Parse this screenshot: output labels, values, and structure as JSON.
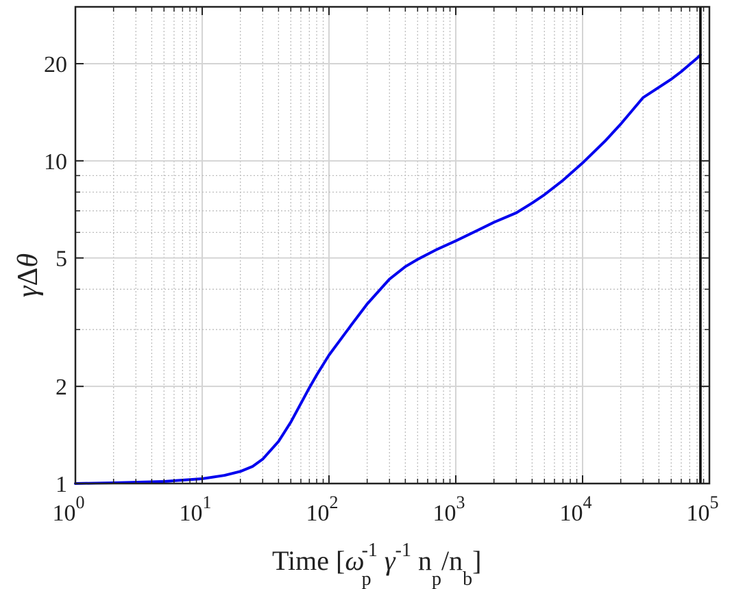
{
  "chart_data": {
    "type": "line",
    "xscale": "log",
    "yscale": "log",
    "xlim": [
      1,
      100000
    ],
    "ylim": [
      1,
      30
    ],
    "grid": true,
    "minor_grid": true,
    "xlabel": "Time [ω_p^-1 γ^-1 n_p/n_b]",
    "ylabel": "γΔθ",
    "x_ticks": [
      {
        "value": 1,
        "base": "10",
        "exp": "0"
      },
      {
        "value": 10,
        "base": "10",
        "exp": "1"
      },
      {
        "value": 100,
        "base": "10",
        "exp": "2"
      },
      {
        "value": 1000,
        "base": "10",
        "exp": "3"
      },
      {
        "value": 10000,
        "base": "10",
        "exp": "4"
      },
      {
        "value": 100000,
        "base": "10",
        "exp": "5"
      }
    ],
    "y_ticks": [
      {
        "value": 1,
        "label": "1"
      },
      {
        "value": 2,
        "label": "2"
      },
      {
        "value": 5,
        "label": "5"
      },
      {
        "value": 10,
        "label": "10"
      },
      {
        "value": 20,
        "label": "20"
      }
    ],
    "series": [
      {
        "color": "#0000ee",
        "x": [
          1,
          2,
          5,
          10,
          15,
          20,
          25,
          30,
          40,
          50,
          60,
          70,
          80,
          100,
          150,
          200,
          300,
          400,
          500,
          700,
          1000,
          1500,
          2000,
          3000,
          4000,
          5000,
          7000,
          10000,
          15000,
          20000,
          30000,
          40000,
          50000,
          60000,
          70000,
          80000,
          85000
        ],
        "y": [
          1.0,
          1.005,
          1.015,
          1.035,
          1.06,
          1.09,
          1.13,
          1.19,
          1.35,
          1.55,
          1.77,
          1.98,
          2.17,
          2.5,
          3.1,
          3.6,
          4.3,
          4.7,
          4.95,
          5.3,
          5.65,
          6.1,
          6.45,
          6.9,
          7.4,
          7.85,
          8.7,
          9.85,
          11.5,
          13.0,
          15.7,
          16.9,
          17.9,
          18.9,
          19.9,
          20.8,
          21.3
        ]
      }
    ],
    "vertical_line": {
      "x": 85000,
      "color": "#000000"
    }
  },
  "labels": {
    "x_axis_main": "Time [",
    "omega": "ω",
    "p1": "p",
    "gamma": "γ",
    "sup1": "-1",
    "sup2": "-1",
    "np": "n",
    "p2": "p",
    "slash_nb": "/n",
    "b": "b",
    "close": "]",
    "y_gamma": "γ",
    "y_delta": "Δ",
    "y_theta": "θ"
  }
}
